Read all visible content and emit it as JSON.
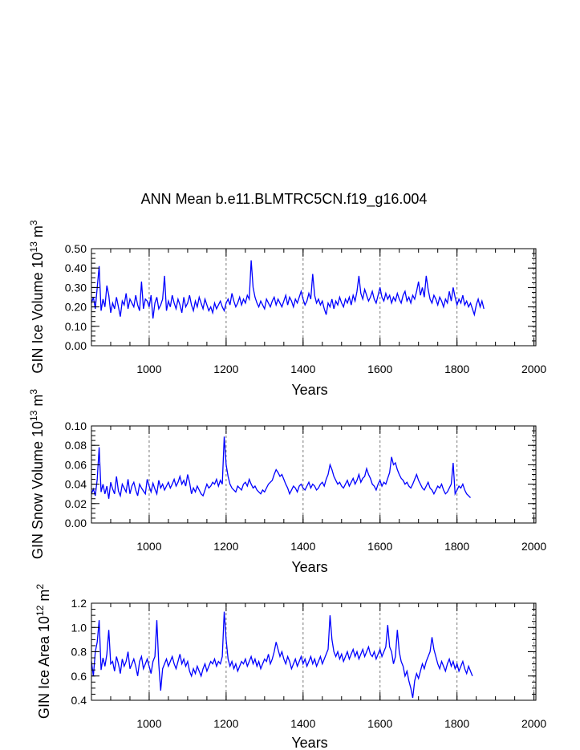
{
  "page_title": "ANN Mean b.e11.BLMTRC5CN.f19_g16.004",
  "colors": {
    "series": "#0000ff",
    "axes": "#000000",
    "reference": "#777777"
  },
  "chart_data": [
    {
      "type": "line",
      "id": "ice-volume",
      "ylabel_main": "GIN Ice Volume 10",
      "ylabel_exp": "13",
      "ylabel_unit": " m",
      "ylabel_unit_exp": "3",
      "xlabel": "Years",
      "xlim": [
        850,
        2005
      ],
      "ylim": [
        0.0,
        0.5
      ],
      "x_ticks": [
        1000,
        1200,
        1400,
        1600,
        1800,
        2000
      ],
      "y_ticks": [
        0.0,
        0.1,
        0.2,
        0.3,
        0.4,
        0.5
      ],
      "y_tick_labels": [
        "0.00",
        "0.10",
        "0.20",
        "0.30",
        "0.40",
        "0.50"
      ],
      "reference_x": [
        1000,
        1200,
        1400,
        1600,
        1800,
        2000
      ],
      "series": [
        {
          "name": "GIN Ice Volume",
          "x_start": 850,
          "x_step": 5,
          "values": [
            0.22,
            0.25,
            0.19,
            0.3,
            0.41,
            0.18,
            0.24,
            0.2,
            0.31,
            0.26,
            0.17,
            0.22,
            0.19,
            0.25,
            0.2,
            0.15,
            0.23,
            0.21,
            0.27,
            0.19,
            0.24,
            0.22,
            0.2,
            0.26,
            0.21,
            0.18,
            0.33,
            0.19,
            0.24,
            0.23,
            0.2,
            0.26,
            0.14,
            0.22,
            0.25,
            0.19,
            0.21,
            0.24,
            0.36,
            0.18,
            0.23,
            0.2,
            0.26,
            0.22,
            0.19,
            0.24,
            0.21,
            0.17,
            0.25,
            0.2,
            0.22,
            0.26,
            0.21,
            0.18,
            0.23,
            0.2,
            0.25,
            0.22,
            0.19,
            0.24,
            0.21,
            0.18,
            0.2,
            0.17,
            0.22,
            0.19,
            0.21,
            0.23,
            0.2,
            0.18,
            0.22,
            0.24,
            0.21,
            0.27,
            0.23,
            0.2,
            0.22,
            0.25,
            0.21,
            0.24,
            0.22,
            0.26,
            0.24,
            0.44,
            0.3,
            0.25,
            0.22,
            0.2,
            0.23,
            0.21,
            0.19,
            0.24,
            0.22,
            0.2,
            0.23,
            0.25,
            0.21,
            0.24,
            0.22,
            0.2,
            0.23,
            0.26,
            0.21,
            0.25,
            0.23,
            0.2,
            0.24,
            0.22,
            0.25,
            0.28,
            0.24,
            0.21,
            0.23,
            0.27,
            0.24,
            0.37,
            0.26,
            0.22,
            0.24,
            0.21,
            0.23,
            0.19,
            0.16,
            0.22,
            0.2,
            0.24,
            0.19,
            0.23,
            0.21,
            0.25,
            0.22,
            0.2,
            0.24,
            0.22,
            0.25,
            0.21,
            0.26,
            0.23,
            0.28,
            0.36,
            0.27,
            0.24,
            0.29,
            0.26,
            0.23,
            0.25,
            0.28,
            0.24,
            0.22,
            0.26,
            0.3,
            0.25,
            0.23,
            0.27,
            0.24,
            0.26,
            0.22,
            0.25,
            0.23,
            0.27,
            0.24,
            0.22,
            0.26,
            0.28,
            0.23,
            0.25,
            0.22,
            0.26,
            0.24,
            0.28,
            0.33,
            0.26,
            0.3,
            0.25,
            0.36,
            0.29,
            0.24,
            0.22,
            0.26,
            0.24,
            0.21,
            0.25,
            0.23,
            0.2,
            0.24,
            0.22,
            0.28,
            0.23,
            0.3,
            0.25,
            0.21,
            0.24,
            0.22,
            0.26,
            0.21,
            0.23,
            0.2,
            0.22,
            0.19,
            0.16,
            0.21,
            0.24,
            0.2,
            0.23,
            0.19
          ]
        }
      ]
    },
    {
      "type": "line",
      "id": "snow-volume",
      "ylabel_main": "GIN Snow Volume 10",
      "ylabel_exp": "13",
      "ylabel_unit": " m",
      "ylabel_unit_exp": "3",
      "xlabel": "Years",
      "xlim": [
        850,
        2005
      ],
      "ylim": [
        0.0,
        0.1
      ],
      "x_ticks": [
        1000,
        1200,
        1400,
        1600,
        1800,
        2000
      ],
      "y_ticks": [
        0.0,
        0.02,
        0.04,
        0.06,
        0.08,
        0.1
      ],
      "y_tick_labels": [
        "0.00",
        "0.02",
        "0.04",
        "0.06",
        "0.08",
        "0.10"
      ],
      "reference_x": [
        1000,
        1200,
        1400,
        1600,
        1800,
        2000
      ],
      "series": [
        {
          "name": "GIN Snow Volume",
          "x_start": 850,
          "x_step": 5,
          "values": [
            0.03,
            0.035,
            0.028,
            0.045,
            0.078,
            0.032,
            0.04,
            0.03,
            0.038,
            0.025,
            0.042,
            0.035,
            0.03,
            0.048,
            0.033,
            0.028,
            0.04,
            0.036,
            0.032,
            0.045,
            0.03,
            0.038,
            0.042,
            0.034,
            0.028,
            0.04,
            0.036,
            0.033,
            0.03,
            0.045,
            0.038,
            0.032,
            0.041,
            0.035,
            0.03,
            0.044,
            0.036,
            0.04,
            0.034,
            0.038,
            0.042,
            0.036,
            0.04,
            0.045,
            0.038,
            0.042,
            0.048,
            0.04,
            0.044,
            0.038,
            0.05,
            0.042,
            0.03,
            0.036,
            0.032,
            0.038,
            0.034,
            0.03,
            0.028,
            0.034,
            0.04,
            0.036,
            0.038,
            0.042,
            0.04,
            0.045,
            0.038,
            0.044,
            0.04,
            0.089,
            0.06,
            0.048,
            0.04,
            0.036,
            0.034,
            0.032,
            0.038,
            0.036,
            0.034,
            0.04,
            0.042,
            0.038,
            0.045,
            0.04,
            0.036,
            0.038,
            0.034,
            0.032,
            0.03,
            0.034,
            0.032,
            0.036,
            0.04,
            0.042,
            0.044,
            0.05,
            0.055,
            0.052,
            0.048,
            0.05,
            0.045,
            0.04,
            0.036,
            0.03,
            0.034,
            0.038,
            0.036,
            0.032,
            0.038,
            0.04,
            0.036,
            0.034,
            0.038,
            0.042,
            0.036,
            0.04,
            0.038,
            0.034,
            0.036,
            0.04,
            0.042,
            0.038,
            0.045,
            0.05,
            0.06,
            0.055,
            0.048,
            0.044,
            0.04,
            0.042,
            0.038,
            0.036,
            0.04,
            0.044,
            0.038,
            0.042,
            0.046,
            0.04,
            0.044,
            0.05,
            0.042,
            0.046,
            0.048,
            0.056,
            0.05,
            0.046,
            0.04,
            0.038,
            0.034,
            0.04,
            0.044,
            0.038,
            0.042,
            0.04,
            0.046,
            0.052,
            0.068,
            0.06,
            0.062,
            0.055,
            0.05,
            0.046,
            0.044,
            0.04,
            0.042,
            0.038,
            0.036,
            0.04,
            0.045,
            0.05,
            0.044,
            0.04,
            0.036,
            0.034,
            0.038,
            0.042,
            0.036,
            0.034,
            0.03,
            0.034,
            0.038,
            0.036,
            0.04,
            0.034,
            0.03,
            0.032,
            0.036,
            0.04,
            0.062,
            0.03,
            0.034,
            0.038,
            0.036,
            0.04,
            0.034,
            0.03,
            0.028,
            0.026
          ]
        }
      ]
    },
    {
      "type": "line",
      "id": "ice-area",
      "ylabel_main": "GIN Ice Area 10",
      "ylabel_exp": "12",
      "ylabel_unit": " m",
      "ylabel_unit_exp": "2",
      "xlabel": "Years",
      "xlim": [
        850,
        2005
      ],
      "ylim": [
        0.4,
        1.2
      ],
      "x_ticks": [
        1000,
        1200,
        1400,
        1600,
        1800,
        2000
      ],
      "y_ticks": [
        0.4,
        0.6,
        0.8,
        1.0,
        1.2
      ],
      "y_tick_labels": [
        "0.4",
        "0.6",
        "0.8",
        "1.0",
        "1.2"
      ],
      "reference_x": [
        1000,
        1200,
        1400,
        1600,
        1800,
        2000
      ],
      "series": [
        {
          "name": "GIN Ice Area",
          "x_start": 850,
          "x_step": 5,
          "values": [
            0.72,
            0.6,
            0.8,
            0.88,
            1.06,
            0.65,
            0.75,
            0.68,
            0.78,
            0.98,
            0.7,
            0.72,
            0.64,
            0.76,
            0.7,
            0.62,
            0.74,
            0.68,
            0.72,
            0.8,
            0.66,
            0.7,
            0.74,
            0.68,
            0.6,
            0.72,
            0.76,
            0.66,
            0.7,
            0.74,
            0.68,
            0.62,
            0.72,
            0.76,
            1.06,
            0.7,
            0.48,
            0.66,
            0.7,
            0.74,
            0.68,
            0.72,
            0.76,
            0.7,
            0.66,
            0.72,
            0.78,
            0.7,
            0.74,
            0.68,
            0.72,
            0.64,
            0.6,
            0.66,
            0.62,
            0.68,
            0.64,
            0.6,
            0.66,
            0.7,
            0.64,
            0.68,
            0.72,
            0.7,
            0.74,
            0.68,
            0.72,
            0.7,
            0.76,
            1.13,
            0.9,
            0.74,
            0.68,
            0.72,
            0.66,
            0.7,
            0.64,
            0.68,
            0.72,
            0.7,
            0.74,
            0.68,
            0.72,
            0.76,
            0.7,
            0.74,
            0.68,
            0.72,
            0.66,
            0.7,
            0.74,
            0.72,
            0.78,
            0.7,
            0.74,
            0.8,
            0.88,
            0.82,
            0.76,
            0.8,
            0.74,
            0.7,
            0.76,
            0.72,
            0.66,
            0.7,
            0.74,
            0.68,
            0.72,
            0.76,
            0.7,
            0.74,
            0.68,
            0.72,
            0.76,
            0.7,
            0.74,
            0.68,
            0.72,
            0.76,
            0.7,
            0.74,
            0.78,
            0.82,
            1.1,
            0.9,
            0.8,
            0.76,
            0.8,
            0.74,
            0.78,
            0.72,
            0.76,
            0.8,
            0.74,
            0.78,
            0.82,
            0.76,
            0.8,
            0.74,
            0.78,
            0.82,
            0.76,
            0.8,
            0.84,
            0.78,
            0.76,
            0.8,
            0.74,
            0.78,
            0.82,
            0.76,
            0.8,
            0.84,
            1.02,
            0.84,
            0.8,
            0.7,
            0.76,
            0.98,
            0.8,
            0.72,
            0.68,
            0.6,
            0.64,
            0.56,
            0.5,
            0.42,
            0.56,
            0.62,
            0.58,
            0.64,
            0.7,
            0.66,
            0.72,
            0.76,
            0.8,
            0.92,
            0.82,
            0.76,
            0.7,
            0.66,
            0.72,
            0.68,
            0.64,
            0.7,
            0.74,
            0.68,
            0.72,
            0.66,
            0.7,
            0.64,
            0.68,
            0.72,
            0.66,
            0.62,
            0.68,
            0.64,
            0.6
          ]
        }
      ]
    }
  ]
}
